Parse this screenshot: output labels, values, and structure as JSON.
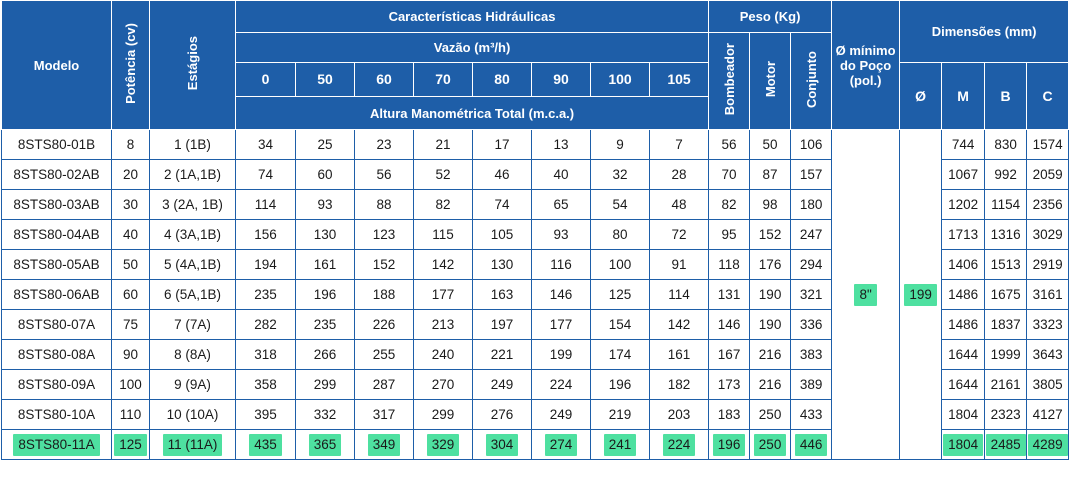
{
  "colors": {
    "header_bg": "#1e5ea8",
    "highlight": "#4ee0a0"
  },
  "headers": {
    "modelo": "Modelo",
    "potencia": "Potência (cv)",
    "estagios": "Estágios",
    "caracteristicas": "Características Hidráulicas",
    "vazao": "Vazão (m³/h)",
    "flows": [
      "0",
      "50",
      "60",
      "70",
      "80",
      "90",
      "100",
      "105"
    ],
    "altura": "Altura Manométrica Total (m.c.a.)",
    "peso": "Peso (Kg)",
    "bombeador": "Bombeador",
    "motor": "Motor",
    "conjunto": "Conjunto",
    "diametro_min": "Ø mínimo do Poço (pol.)",
    "dimensoes": "Dimensões (mm)",
    "phi": "Ø",
    "m": "M",
    "b": "B",
    "c": "C"
  },
  "shared": {
    "diametro_min_poco": "8\"",
    "phi": "199"
  },
  "rows": [
    {
      "modelo": "8STS80-01B",
      "potencia": "8",
      "estagios": "1 (1B)",
      "alturas": [
        "34",
        "25",
        "23",
        "21",
        "17",
        "13",
        "9",
        "7"
      ],
      "bombeador": "56",
      "motor": "50",
      "conjunto": "106",
      "m": "744",
      "b": "830",
      "c": "1574"
    },
    {
      "modelo": "8STS80-02AB",
      "potencia": "20",
      "estagios": "2 (1A,1B)",
      "alturas": [
        "74",
        "60",
        "56",
        "52",
        "46",
        "40",
        "32",
        "28"
      ],
      "bombeador": "70",
      "motor": "87",
      "conjunto": "157",
      "m": "1067",
      "b": "992",
      "c": "2059"
    },
    {
      "modelo": "8STS80-03AB",
      "potencia": "30",
      "estagios": "3 (2A, 1B)",
      "alturas": [
        "114",
        "93",
        "88",
        "82",
        "74",
        "65",
        "54",
        "48"
      ],
      "bombeador": "82",
      "motor": "98",
      "conjunto": "180",
      "m": "1202",
      "b": "1154",
      "c": "2356"
    },
    {
      "modelo": "8STS80-04AB",
      "potencia": "40",
      "estagios": "4 (3A,1B)",
      "alturas": [
        "156",
        "130",
        "123",
        "115",
        "105",
        "93",
        "80",
        "72"
      ],
      "bombeador": "95",
      "motor": "152",
      "conjunto": "247",
      "m": "1713",
      "b": "1316",
      "c": "3029"
    },
    {
      "modelo": "8STS80-05AB",
      "potencia": "50",
      "estagios": "5 (4A,1B)",
      "alturas": [
        "194",
        "161",
        "152",
        "142",
        "130",
        "116",
        "100",
        "91"
      ],
      "bombeador": "118",
      "motor": "176",
      "conjunto": "294",
      "m": "1406",
      "b": "1513",
      "c": "2919"
    },
    {
      "modelo": "8STS80-06AB",
      "potencia": "60",
      "estagios": "6 (5A,1B)",
      "alturas": [
        "235",
        "196",
        "188",
        "177",
        "163",
        "146",
        "125",
        "114"
      ],
      "bombeador": "131",
      "motor": "190",
      "conjunto": "321",
      "m": "1486",
      "b": "1675",
      "c": "3161"
    },
    {
      "modelo": "8STS80-07A",
      "potencia": "75",
      "estagios": "7 (7A)",
      "alturas": [
        "282",
        "235",
        "226",
        "213",
        "197",
        "177",
        "154",
        "142"
      ],
      "bombeador": "146",
      "motor": "190",
      "conjunto": "336",
      "m": "1486",
      "b": "1837",
      "c": "3323"
    },
    {
      "modelo": "8STS80-08A",
      "potencia": "90",
      "estagios": "8 (8A)",
      "alturas": [
        "318",
        "266",
        "255",
        "240",
        "221",
        "199",
        "174",
        "161"
      ],
      "bombeador": "167",
      "motor": "216",
      "conjunto": "383",
      "m": "1644",
      "b": "1999",
      "c": "3643"
    },
    {
      "modelo": "8STS80-09A",
      "potencia": "100",
      "estagios": "9 (9A)",
      "alturas": [
        "358",
        "299",
        "287",
        "270",
        "249",
        "224",
        "196",
        "182"
      ],
      "bombeador": "173",
      "motor": "216",
      "conjunto": "389",
      "m": "1644",
      "b": "2161",
      "c": "3805"
    },
    {
      "modelo": "8STS80-10A",
      "potencia": "110",
      "estagios": "10 (10A)",
      "alturas": [
        "395",
        "332",
        "317",
        "299",
        "276",
        "249",
        "219",
        "203"
      ],
      "bombeador": "183",
      "motor": "250",
      "conjunto": "433",
      "m": "1804",
      "b": "2323",
      "c": "4127"
    },
    {
      "modelo": "8STS80-11A",
      "potencia": "125",
      "estagios": "11 (11A)",
      "alturas": [
        "435",
        "365",
        "349",
        "329",
        "304",
        "274",
        "241",
        "224"
      ],
      "bombeador": "196",
      "motor": "250",
      "conjunto": "446",
      "m": "1804",
      "b": "2485",
      "c": "4289"
    }
  ]
}
